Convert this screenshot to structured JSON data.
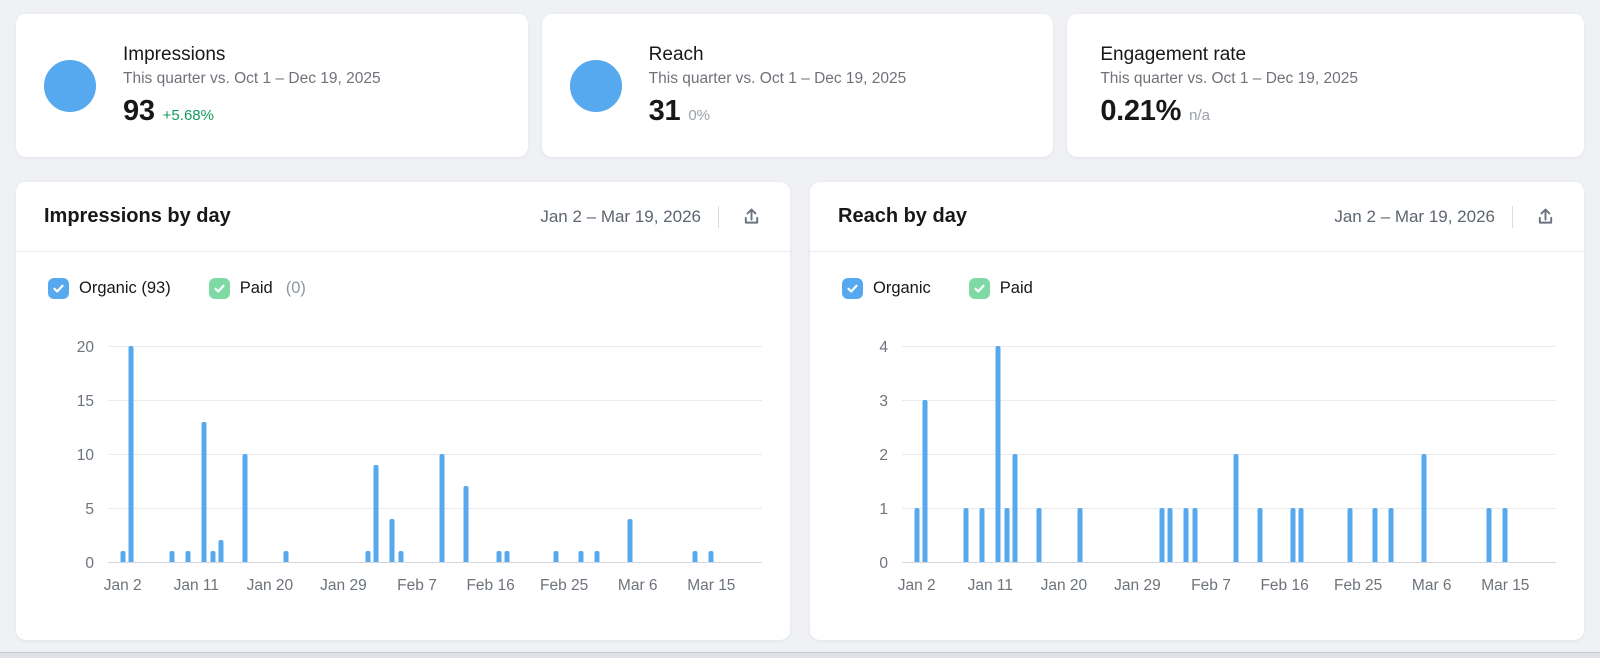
{
  "colors": {
    "accent_blue": "#57a9ef",
    "paid_green": "#7ed9a4",
    "positive_green": "#149960",
    "muted_gray": "#9ba1a8",
    "background": "#eff1f5"
  },
  "kpi_cards": [
    {
      "id": "impressions",
      "title": "Impressions",
      "subtitle": "This quarter vs. Oct 1 – Dec 19, 2025",
      "value": "93",
      "delta": "+5.68%",
      "delta_style": "positive",
      "donut": true
    },
    {
      "id": "reach",
      "title": "Reach",
      "subtitle": "This quarter vs. Oct 1 – Dec 19, 2025",
      "value": "31",
      "delta": "0%",
      "delta_style": "muted",
      "donut": true
    },
    {
      "id": "engagement-rate",
      "title": "Engagement rate",
      "subtitle": "This quarter vs. Oct 1 – Dec 19, 2025",
      "value": "0.21%",
      "delta": "n/a",
      "delta_style": "muted",
      "donut": false
    }
  ],
  "chart_cards": [
    {
      "id": "impressions-by-day",
      "title": "Impressions by day",
      "date_range": "Jan 2 – Mar 19, 2026",
      "legend": [
        {
          "id": "organic",
          "label": "Organic (93)",
          "suffix": "",
          "color": "#57a9ef",
          "checked": true
        },
        {
          "id": "paid",
          "label": "Paid",
          "suffix": "(0)",
          "color": "#7ed9a4",
          "checked": true
        }
      ]
    },
    {
      "id": "reach-by-day",
      "title": "Reach by day",
      "date_range": "Jan 2 – Mar 19, 2026",
      "legend": [
        {
          "id": "organic",
          "label": "Organic",
          "suffix": "",
          "color": "#57a9ef",
          "checked": true
        },
        {
          "id": "paid",
          "label": "Paid",
          "suffix": "",
          "color": "#7ed9a4",
          "checked": true
        }
      ]
    }
  ],
  "chart_data": [
    {
      "id": "impressions-by-day",
      "type": "bar",
      "title": "Impressions by day",
      "series_name": "Organic",
      "bar_color": "#57a9ef",
      "ylim": [
        0,
        20
      ],
      "y_ticks": [
        0,
        5,
        10,
        15,
        20
      ],
      "x_range": "Jan 2 – Mar 19, 2026",
      "x_range_days": 77,
      "x_ticks": [
        {
          "day": 0,
          "label": "Jan 2"
        },
        {
          "day": 9,
          "label": "Jan 11"
        },
        {
          "day": 18,
          "label": "Jan 20"
        },
        {
          "day": 27,
          "label": "Jan 29"
        },
        {
          "day": 36,
          "label": "Feb 7"
        },
        {
          "day": 45,
          "label": "Feb 16"
        },
        {
          "day": 54,
          "label": "Feb 25"
        },
        {
          "day": 63,
          "label": "Mar 6"
        },
        {
          "day": 72,
          "label": "Mar 15"
        }
      ],
      "points": [
        {
          "date": "Jan 2",
          "day": 0,
          "value": 1
        },
        {
          "date": "Jan 3",
          "day": 1,
          "value": 20
        },
        {
          "date": "Jan 8",
          "day": 6,
          "value": 1
        },
        {
          "date": "Jan 10",
          "day": 8,
          "value": 1
        },
        {
          "date": "Jan 12",
          "day": 10,
          "value": 13
        },
        {
          "date": "Jan 13",
          "day": 11,
          "value": 1
        },
        {
          "date": "Jan 14",
          "day": 12,
          "value": 2
        },
        {
          "date": "Jan 17",
          "day": 15,
          "value": 10
        },
        {
          "date": "Jan 22",
          "day": 20,
          "value": 1
        },
        {
          "date": "Feb 1",
          "day": 30,
          "value": 1
        },
        {
          "date": "Feb 2",
          "day": 31,
          "value": 9
        },
        {
          "date": "Feb 4",
          "day": 33,
          "value": 4
        },
        {
          "date": "Feb 5",
          "day": 34,
          "value": 1
        },
        {
          "date": "Feb 10",
          "day": 39,
          "value": 10
        },
        {
          "date": "Feb 13",
          "day": 42,
          "value": 7
        },
        {
          "date": "Feb 17",
          "day": 46,
          "value": 1
        },
        {
          "date": "Feb 18",
          "day": 47,
          "value": 1
        },
        {
          "date": "Feb 24",
          "day": 53,
          "value": 1
        },
        {
          "date": "Feb 27",
          "day": 56,
          "value": 1
        },
        {
          "date": "Mar 1",
          "day": 58,
          "value": 1
        },
        {
          "date": "Mar 5",
          "day": 62,
          "value": 4
        },
        {
          "date": "Mar 13",
          "day": 70,
          "value": 1
        },
        {
          "date": "Mar 15",
          "day": 72,
          "value": 1
        }
      ]
    },
    {
      "id": "reach-by-day",
      "type": "bar",
      "title": "Reach by day",
      "series_name": "Organic",
      "bar_color": "#57a9ef",
      "ylim": [
        0,
        4
      ],
      "y_ticks": [
        0,
        1,
        2,
        3,
        4
      ],
      "x_range": "Jan 2 – Mar 19, 2026",
      "x_range_days": 77,
      "x_ticks": [
        {
          "day": 0,
          "label": "Jan 2"
        },
        {
          "day": 9,
          "label": "Jan 11"
        },
        {
          "day": 18,
          "label": "Jan 20"
        },
        {
          "day": 27,
          "label": "Jan 29"
        },
        {
          "day": 36,
          "label": "Feb 7"
        },
        {
          "day": 45,
          "label": "Feb 16"
        },
        {
          "day": 54,
          "label": "Feb 25"
        },
        {
          "day": 63,
          "label": "Mar 6"
        },
        {
          "day": 72,
          "label": "Mar 15"
        }
      ],
      "points": [
        {
          "date": "Jan 2",
          "day": 0,
          "value": 1
        },
        {
          "date": "Jan 3",
          "day": 1,
          "value": 3
        },
        {
          "date": "Jan 8",
          "day": 6,
          "value": 1
        },
        {
          "date": "Jan 10",
          "day": 8,
          "value": 1
        },
        {
          "date": "Jan 12",
          "day": 10,
          "value": 4
        },
        {
          "date": "Jan 13",
          "day": 11,
          "value": 1
        },
        {
          "date": "Jan 14",
          "day": 12,
          "value": 2
        },
        {
          "date": "Jan 17",
          "day": 15,
          "value": 1
        },
        {
          "date": "Jan 22",
          "day": 20,
          "value": 1
        },
        {
          "date": "Feb 1",
          "day": 30,
          "value": 1
        },
        {
          "date": "Feb 2",
          "day": 31,
          "value": 1
        },
        {
          "date": "Feb 4",
          "day": 33,
          "value": 1
        },
        {
          "date": "Feb 5",
          "day": 34,
          "value": 1
        },
        {
          "date": "Feb 10",
          "day": 39,
          "value": 2
        },
        {
          "date": "Feb 13",
          "day": 42,
          "value": 1
        },
        {
          "date": "Feb 17",
          "day": 46,
          "value": 1
        },
        {
          "date": "Feb 18",
          "day": 47,
          "value": 1
        },
        {
          "date": "Feb 24",
          "day": 53,
          "value": 1
        },
        {
          "date": "Feb 27",
          "day": 56,
          "value": 1
        },
        {
          "date": "Mar 1",
          "day": 58,
          "value": 1
        },
        {
          "date": "Mar 5",
          "day": 62,
          "value": 2
        },
        {
          "date": "Mar 13",
          "day": 70,
          "value": 1
        },
        {
          "date": "Mar 15",
          "day": 72,
          "value": 1
        }
      ]
    }
  ]
}
